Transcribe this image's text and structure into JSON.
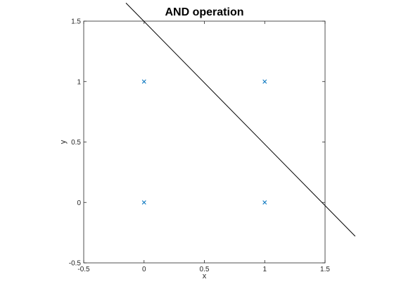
{
  "chart_data": {
    "type": "scatter",
    "title": "AND operation",
    "xlabel": "x",
    "ylabel": "y",
    "xlim": [
      -0.5,
      1.5
    ],
    "ylim": [
      -0.5,
      1.5
    ],
    "xticks": [
      -0.5,
      0,
      0.5,
      1,
      1.5
    ],
    "yticks": [
      -0.5,
      0,
      0.5,
      1,
      1.5
    ],
    "xtick_labels": [
      "-0.5",
      "0",
      "0.5",
      "1",
      "1.5"
    ],
    "ytick_labels": [
      "-0.5",
      "0",
      "0.5",
      "1",
      "1.5"
    ],
    "grid": false,
    "legend": false,
    "points": {
      "marker": "x",
      "color": "#0072bd",
      "x": [
        0,
        0,
        1,
        1
      ],
      "y": [
        0,
        1,
        0,
        1
      ]
    },
    "decision_boundary": {
      "color": "#000000",
      "x": [
        -0.15,
        1.75
      ],
      "y": [
        1.65,
        -0.28
      ]
    }
  }
}
